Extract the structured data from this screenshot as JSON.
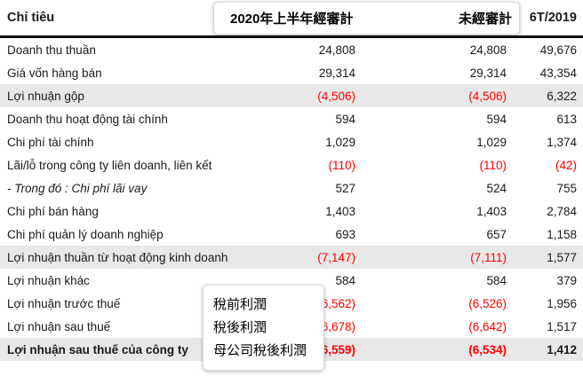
{
  "header": {
    "label": "Chỉ tiêu",
    "period_col": "6T/2019"
  },
  "overlays": {
    "header_popup": {
      "left": "2020年上半年經審計",
      "right": "未經審計"
    },
    "row_popup": {
      "lines": [
        "稅前利潤",
        "稅後利潤",
        "母公司稅後利潤"
      ]
    }
  },
  "rows": [
    {
      "label": "Doanh thu thuần",
      "audited": "24,808",
      "unaudited": "24,808",
      "prior": "49,676"
    },
    {
      "label": "Giá vốn hàng bán",
      "audited": "29,314",
      "unaudited": "29,314",
      "prior": "43,354"
    },
    {
      "label": "Lợi nhuận gộp",
      "audited": "(4,506)",
      "unaudited": "(4,506)",
      "prior": "6,322"
    },
    {
      "label": "Doanh thu hoạt động tài chính",
      "audited": "594",
      "unaudited": "594",
      "prior": "613"
    },
    {
      "label": "Chi phí tài chính",
      "audited": "1,029",
      "unaudited": "1,029",
      "prior": "1,374"
    },
    {
      "label": "Lãi/lỗ trong công ty liên doanh, liên kết",
      "audited": "(110)",
      "unaudited": "(110)",
      "prior": "(42)"
    },
    {
      "label": "- Trong đó : Chi phí lãi vay",
      "audited": "527",
      "unaudited": "524",
      "prior": "755"
    },
    {
      "label": "Chi phí bán hàng",
      "audited": "1,403",
      "unaudited": "1,403",
      "prior": "2,784"
    },
    {
      "label": "Chi phí quản lý doanh nghiệp",
      "audited": "693",
      "unaudited": "657",
      "prior": "1,158"
    },
    {
      "label": "Lợi nhuận thuần từ hoạt động kinh doanh",
      "audited": "(7,147)",
      "unaudited": "(7,111)",
      "prior": "1,577"
    },
    {
      "label": "Lợi nhuận khác",
      "audited": "584",
      "unaudited": "584",
      "prior": "379"
    },
    {
      "label": "Lợi nhuận trước thuế",
      "audited": "(6,562)",
      "unaudited": "(6,526)",
      "prior": "1,956"
    },
    {
      "label": "Lợi nhuận sau thuế",
      "audited": "(6,678)",
      "unaudited": "(6,642)",
      "prior": "1,517"
    },
    {
      "label": "Lợi nhuận sau thuế của công ty",
      "audited": "(6,559)",
      "unaudited": "(6,534)",
      "prior": "1,412"
    }
  ],
  "colors": {
    "negative": "#fe0000",
    "highlight_row": "#e9e8e8",
    "header_rule": "#000000"
  }
}
